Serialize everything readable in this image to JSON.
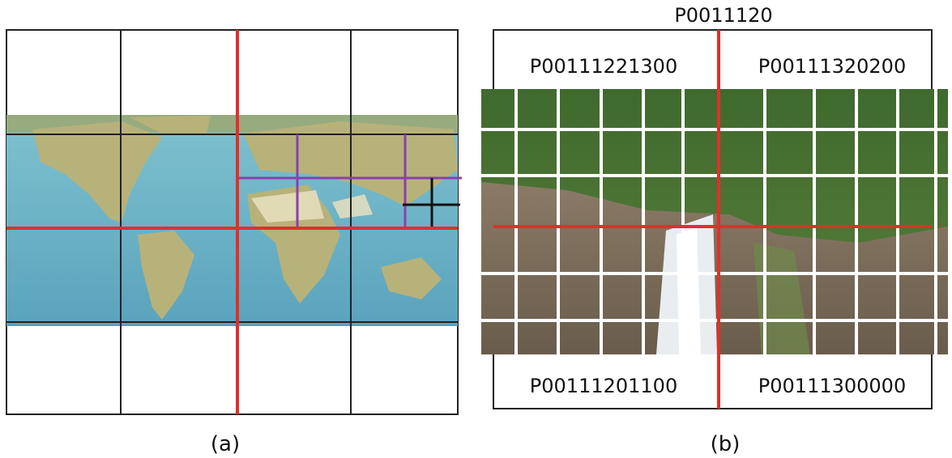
{
  "panel_a": {
    "caption": "(a)"
  },
  "panel_b": {
    "caption": "(b)",
    "title": "P0011120",
    "quadrants": [
      "P00111221300",
      "P00111320200",
      "P00111201100",
      "P00111300000"
    ]
  }
}
